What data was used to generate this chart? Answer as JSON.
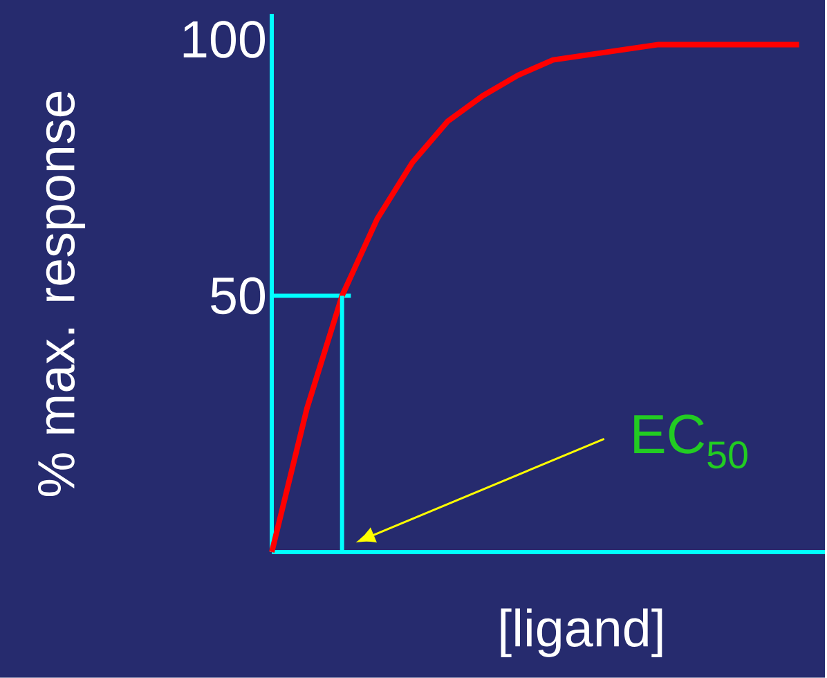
{
  "chart_data": {
    "type": "line",
    "ylabel": "% max. response",
    "xlabel": "[ligand]",
    "categories": [
      null,
      null,
      null,
      null,
      null,
      null,
      null,
      null,
      null,
      null,
      null,
      null,
      null,
      null,
      null,
      null
    ],
    "series": [
      {
        "color": "#ff0000",
        "values": [
          0,
          28,
          50,
          65,
          76,
          84,
          89,
          93,
          96,
          97,
          98,
          99,
          99,
          99,
          99,
          99
        ]
      }
    ],
    "ylim": [
      0,
      105
    ],
    "yticks": [
      50,
      100
    ],
    "tick_labels": "y",
    "marker": "none",
    "line_style": "solid",
    "ref_lines": [
      {
        "axis": "y",
        "value": 50,
        "color": "#00ffff"
      }
    ],
    "annotations": [
      "EC$_{50}$"
    ]
  }
}
